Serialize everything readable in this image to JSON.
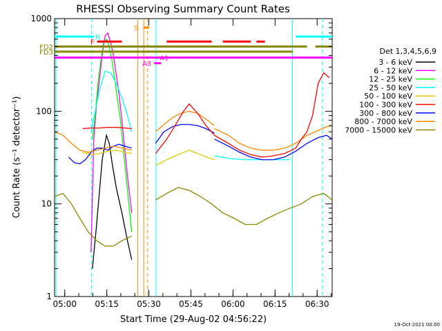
{
  "chart_data": {
    "type": "line",
    "title": "RHESSI Observing Summary Count Rates",
    "xlabel": "Start Time (29-Aug-02 04:56:22)",
    "ylabel": "Count Rate (s⁻¹ detector⁻¹)",
    "footer": "19-Oct-2021 00:00",
    "x_unit": "minutes after 04:56:22",
    "xlim": [
      0,
      99
    ],
    "ylim": [
      1,
      1000
    ],
    "y_scale": "log",
    "x_ticks": [
      "05:00",
      "05:15",
      "05:30",
      "05:45",
      "06:00",
      "06:15",
      "06:30"
    ],
    "x_tick_values": [
      3.63,
      18.63,
      33.63,
      48.63,
      63.63,
      78.63,
      93.63
    ],
    "y_ticks": [
      "1",
      "10",
      "100",
      "1000"
    ],
    "y_tick_values": [
      1,
      10,
      100,
      1000
    ],
    "legend_title": "Det 1,3,4,5,6,9",
    "legend_position": "right",
    "series": [
      {
        "name": "3 - 6 keV",
        "color": "#000000",
        "x": [
          13.5,
          15,
          17,
          18.5,
          19.5,
          20.5,
          22,
          24,
          26,
          27.5
        ],
        "y": [
          2,
          6,
          30,
          55,
          45,
          28,
          15,
          8,
          4,
          2.5
        ]
      },
      {
        "name": "6 - 12 keV",
        "color": "#ff00ff",
        "x": [
          13,
          14,
          15,
          16,
          17,
          18,
          19,
          20,
          21,
          22,
          23,
          24,
          25,
          26,
          27.5
        ],
        "y": [
          3,
          50,
          120,
          220,
          400,
          650,
          700,
          550,
          400,
          250,
          150,
          80,
          40,
          20,
          8
        ]
      },
      {
        "name": "12 - 25 keV",
        "color": "#00ff00",
        "x": [
          13.5,
          14.5,
          15.5,
          16.5,
          17.5,
          18.5,
          19.5,
          20.5,
          21.5,
          22.5,
          23.5,
          24.5,
          25.5,
          26.5,
          27.5
        ],
        "y": [
          50,
          90,
          200,
          350,
          550,
          600,
          500,
          350,
          220,
          130,
          80,
          40,
          20,
          10,
          5
        ]
      },
      {
        "name": "25 - 50 keV",
        "color": "#00ffff",
        "x": [
          13,
          14.5,
          16,
          18,
          20,
          22,
          24,
          26,
          27.5
        ],
        "y": [
          60,
          100,
          170,
          270,
          260,
          200,
          140,
          90,
          60
        ]
      },
      {
        "name": "50 - 100 keV",
        "color": "#ddcc00",
        "x": [
          10,
          13,
          16,
          19,
          22,
          25,
          27.5
        ],
        "y": [
          36,
          34,
          35,
          37,
          38,
          36,
          35
        ]
      },
      {
        "name": "100 - 300 keV",
        "color": "#ff0000",
        "x": [
          10,
          13,
          16,
          19,
          22,
          25,
          27.5
        ],
        "y": [
          65,
          66,
          66,
          67,
          67,
          66,
          65
        ]
      },
      {
        "name": "300 - 800 keV",
        "color": "#0000ff",
        "x": [
          5,
          7,
          9,
          11,
          13,
          15,
          17,
          19,
          21,
          23,
          25,
          27.5
        ],
        "y": [
          32,
          28,
          27,
          30,
          36,
          40,
          40,
          38,
          42,
          44,
          42,
          40
        ]
      },
      {
        "name": "800 - 7000 keV",
        "color": "#ff8800",
        "x": [
          0,
          3,
          6,
          9,
          12,
          15,
          18,
          21,
          24,
          27.5
        ],
        "y": [
          60,
          55,
          45,
          38,
          36,
          38,
          40,
          42,
          40,
          38
        ]
      },
      {
        "name": "7000 - 15000 keV",
        "color": "#888800",
        "x": [
          0,
          3,
          6,
          9,
          12,
          15,
          18,
          21,
          24,
          27.5
        ],
        "y": [
          12,
          13,
          10,
          7,
          5,
          4,
          3.5,
          3.5,
          4,
          4.5
        ]
      }
    ],
    "late_segments": [
      {
        "name": "late-blue",
        "color": "#0000ff",
        "x": [
          36,
          39,
          42,
          45,
          48,
          51,
          54,
          57
        ],
        "y": [
          45,
          60,
          68,
          72,
          72,
          70,
          65,
          58
        ]
      },
      {
        "name": "late-orange",
        "color": "#ff8800",
        "x": [
          36,
          39,
          42,
          45,
          48,
          51,
          54,
          57
        ],
        "y": [
          60,
          72,
          85,
          95,
          100,
          95,
          82,
          70
        ]
      },
      {
        "name": "late-red",
        "color": "#ff0000",
        "x": [
          36,
          40,
          43,
          46,
          48,
          51,
          54,
          57
        ],
        "y": [
          35,
          50,
          70,
          100,
          120,
          95,
          70,
          55
        ]
      },
      {
        "name": "late-yellow",
        "color": "#ddcc00",
        "x": [
          36,
          40,
          44,
          48,
          52,
          57
        ],
        "y": [
          26,
          30,
          34,
          38,
          34,
          30
        ]
      },
      {
        "name": "late-cyan",
        "color": "#00ffff",
        "x": [
          57,
          62,
          68,
          74,
          80,
          84
        ],
        "y": [
          33,
          31,
          30,
          30,
          30,
          30
        ]
      },
      {
        "name": "late-orange-2",
        "color": "#ff8800",
        "x": [
          57,
          62,
          66,
          70,
          74,
          78,
          82,
          86,
          90,
          93,
          97,
          99
        ],
        "y": [
          65,
          55,
          45,
          40,
          38,
          38,
          40,
          45,
          55,
          60,
          68,
          70
        ]
      },
      {
        "name": "late-red-2",
        "color": "#ff0000",
        "x": [
          57,
          62,
          66,
          70,
          74,
          78,
          82,
          86,
          88,
          90,
          92,
          94,
          96,
          98
        ],
        "y": [
          55,
          45,
          38,
          34,
          32,
          33,
          35,
          40,
          50,
          60,
          90,
          200,
          260,
          230
        ]
      },
      {
        "name": "late-blue-2",
        "color": "#0000ff",
        "x": [
          57,
          62,
          66,
          70,
          74,
          78,
          82,
          86,
          90,
          94,
          97,
          99
        ],
        "y": [
          50,
          42,
          36,
          32,
          30,
          30,
          32,
          37,
          45,
          52,
          55,
          50
        ]
      },
      {
        "name": "late-olive",
        "color": "#888800",
        "x": [
          36,
          40,
          44,
          48,
          52,
          56,
          60,
          64,
          68,
          72,
          76,
          80,
          84,
          88,
          92,
          96,
          99
        ],
        "y": [
          11,
          13,
          15,
          14,
          12,
          10,
          8,
          7,
          6,
          6,
          7,
          8,
          9,
          10,
          12,
          13,
          11
        ]
      }
    ],
    "vertical_lines": [
      {
        "name": "saa-start",
        "color": "#00ffff",
        "x": 0.5
      },
      {
        "name": "night-1",
        "color": "#00ffff",
        "x": 13.2,
        "dashed": true
      },
      {
        "name": "attenuator-1",
        "color": "#ff8800",
        "x": 29.7
      },
      {
        "name": "attenuator-2",
        "color": "#ff8800",
        "x": 31.8
      },
      {
        "name": "attenuator-dash",
        "color": "#ff8800",
        "x": 33.2,
        "dashed": true
      },
      {
        "name": "night-2",
        "color": "#00ffff",
        "x": 36.2
      },
      {
        "name": "saa-2",
        "color": "#00ffff",
        "x": 84.8
      },
      {
        "name": "night-3",
        "color": "#00ffff",
        "x": 95.5,
        "dashed": true
      }
    ],
    "flag_bars": [
      {
        "label": "N",
        "color": "#00ffff",
        "x": [
          0,
          14
        ],
        "y": 640
      },
      {
        "label": "",
        "color": "#00ffff",
        "x": [
          86,
          99
        ],
        "y": 640
      },
      {
        "label": "F",
        "color": "#ff0000",
        "x": [
          15.2,
          24
        ],
        "y": 565
      },
      {
        "label": "",
        "color": "#ff0000",
        "x": [
          40,
          56
        ],
        "y": 565
      },
      {
        "label": "",
        "color": "#ff0000",
        "x": [
          60,
          70
        ],
        "y": 565
      },
      {
        "label": "",
        "color": "#ff0000",
        "x": [
          72,
          75
        ],
        "y": 565
      },
      {
        "label": "FD2",
        "color": "#888800",
        "x": [
          0,
          90
        ],
        "y": 500
      },
      {
        "label": "",
        "color": "#888800",
        "x": [
          93,
          99
        ],
        "y": 500
      },
      {
        "label": "FD3",
        "color": "#888800",
        "x": [
          0,
          85
        ],
        "y": 440
      },
      {
        "label": "A1",
        "color": "#ff00ff",
        "x": [
          0,
          99
        ],
        "y": 380
      },
      {
        "label": "A3",
        "color": "#ff00ff",
        "x": [
          35.5,
          38
        ],
        "y": 330
      },
      {
        "label": "S",
        "color": "#ff8800",
        "x": [
          31.8,
          33.8
        ],
        "y": 800
      }
    ]
  }
}
